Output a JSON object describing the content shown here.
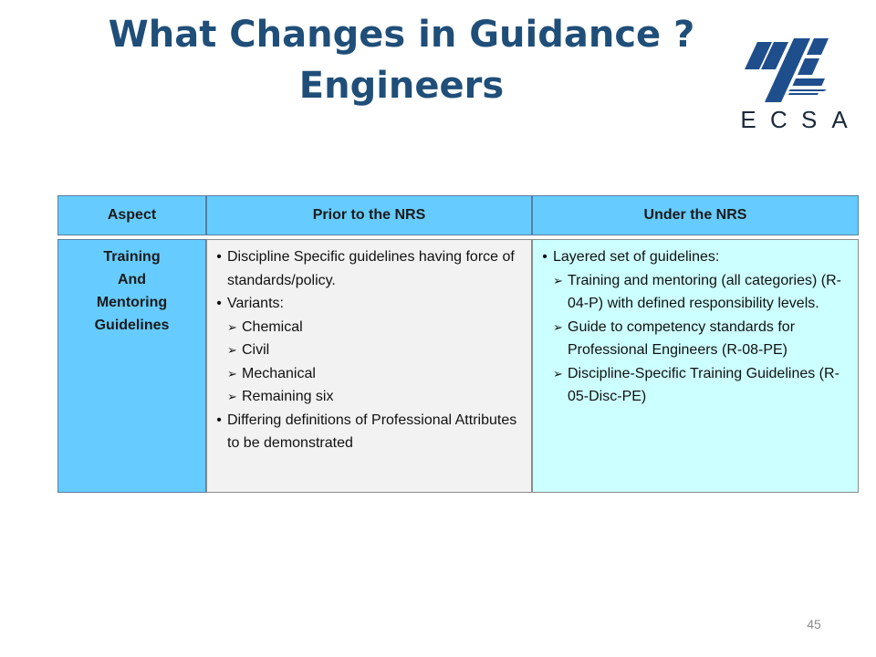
{
  "title": {
    "line1": "What Changes in Guidance ?",
    "line2": "Engineers"
  },
  "logo": {
    "icon": "ecsa-logo-icon",
    "letters": [
      "E",
      "C",
      "S",
      "A"
    ],
    "color": "#1f4e8c"
  },
  "table": {
    "headers": {
      "aspect": "Aspect",
      "prior": "Prior to the NRS",
      "under": "Under the NRS"
    },
    "aspect_lines": [
      "Training",
      "And",
      "Mentoring",
      "Guidelines"
    ],
    "prior": {
      "b1": "Discipline Specific guidelines having force of standards/policy.",
      "b2": "Variants:",
      "sub1": "Chemical",
      "sub2": "Civil",
      "sub3": "Mechanical",
      "sub4": "Remaining six",
      "b3": "Differing definitions of Professional Attributes to be demonstrated"
    },
    "under": {
      "b1": "Layered set of guidelines:",
      "sub1": "Training and mentoring (all categories) (R-04-P) with defined  responsibility levels.",
      "sub2": "Guide to competency standards for Professional Engineers  (R-08-PE)",
      "sub3": "Discipline-Specific Training Guidelines (R-05-Disc-PE)"
    },
    "colors": {
      "header_bg": "#66ccff",
      "prior_bg": "#f2f2f2",
      "under_bg": "#ccffff"
    }
  },
  "page_number": "45"
}
